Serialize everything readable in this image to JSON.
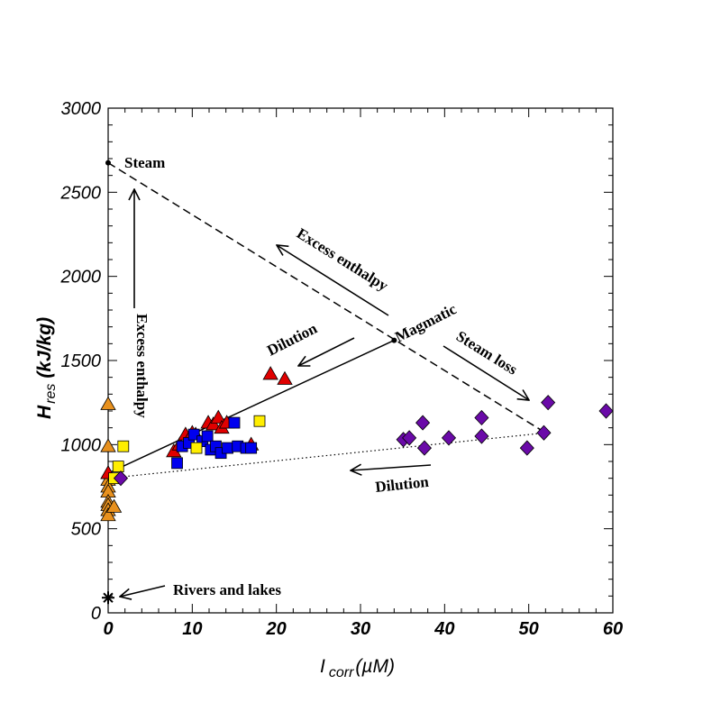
{
  "chart_data": {
    "type": "scatter",
    "xlim": [
      0,
      60
    ],
    "ylim": [
      0,
      3000
    ],
    "x_ticks": [
      "0",
      "10",
      "20",
      "30",
      "40",
      "50",
      "60"
    ],
    "y_ticks": [
      "0",
      "500",
      "1000",
      "1500",
      "2000",
      "2500",
      "3000"
    ],
    "xlabel": {
      "main": "I",
      "sub": "corr",
      "unit": "(µM)"
    },
    "ylabel": {
      "main": "H",
      "sub": "res",
      "unit": "(kJ/kg)"
    },
    "grid": false,
    "series": [
      {
        "marker": "triangle",
        "color": "#e8911e",
        "points": [
          [
            0,
            1240
          ],
          [
            0,
            990
          ],
          [
            0,
            830
          ],
          [
            0,
            790
          ],
          [
            0,
            750
          ],
          [
            0,
            720
          ],
          [
            0,
            660
          ],
          [
            0,
            640
          ],
          [
            0,
            610
          ],
          [
            0,
            580
          ],
          [
            0.7,
            630
          ]
        ]
      },
      {
        "marker": "triangle",
        "color": "#e00000",
        "points": [
          [
            0,
            830
          ],
          [
            7.8,
            960
          ],
          [
            8.5,
            1000
          ],
          [
            9.2,
            1060
          ],
          [
            10,
            1070
          ],
          [
            10.4,
            1060
          ],
          [
            11.9,
            1130
          ],
          [
            12.5,
            1120
          ],
          [
            13.1,
            1160
          ],
          [
            13.5,
            1100
          ],
          [
            14.1,
            1130
          ],
          [
            19.3,
            1420
          ],
          [
            21,
            1390
          ],
          [
            17,
            1000
          ]
        ]
      },
      {
        "marker": "square",
        "color": "#0000ee",
        "points": [
          [
            8.2,
            890
          ],
          [
            8.8,
            990
          ],
          [
            9.6,
            1010
          ],
          [
            10.2,
            1060
          ],
          [
            11.2,
            1020
          ],
          [
            11.8,
            1050
          ],
          [
            12.2,
            970
          ],
          [
            12.8,
            990
          ],
          [
            13.4,
            950
          ],
          [
            14.2,
            980
          ],
          [
            15,
            1130
          ],
          [
            15.4,
            990
          ],
          [
            16.4,
            980
          ],
          [
            17,
            980
          ]
        ]
      },
      {
        "marker": "square",
        "color": "#ffee00",
        "points": [
          [
            0.7,
            800
          ],
          [
            1.2,
            870
          ],
          [
            1.8,
            990
          ],
          [
            10.5,
            980
          ],
          [
            18,
            1140
          ]
        ]
      },
      {
        "marker": "diamond",
        "color": "#6a0aa8",
        "points": [
          [
            1.5,
            800
          ],
          [
            35.1,
            1030
          ],
          [
            35.8,
            1040
          ],
          [
            37.4,
            1130
          ],
          [
            37.6,
            980
          ],
          [
            40.5,
            1040
          ],
          [
            44.4,
            1160
          ],
          [
            44.4,
            1050
          ],
          [
            49.8,
            980
          ],
          [
            51.8,
            1070
          ],
          [
            52.3,
            1250
          ],
          [
            59.2,
            1200
          ]
        ]
      },
      {
        "marker": "asterisk",
        "color": "#000000",
        "points": [
          [
            0,
            90
          ]
        ]
      }
    ],
    "reference_points": [
      {
        "name": "steam",
        "x": 0,
        "y": 2675
      },
      {
        "name": "magmatic",
        "x": 34,
        "y": 1620
      }
    ],
    "lines": [
      {
        "style": "solid",
        "from": [
          0,
          830
        ],
        "to": [
          34,
          1620
        ]
      },
      {
        "style": "dashed",
        "from": [
          0,
          2675
        ],
        "to": [
          52,
          1070
        ]
      },
      {
        "style": "dotted",
        "from": [
          0,
          800
        ],
        "to": [
          52,
          1070
        ]
      }
    ],
    "annotations": {
      "steam": "Steam",
      "magmatic": "Magmatic",
      "excess_enthalpy_diagonal": "Excess enthalpy",
      "excess_enthalpy_vertical": "Excess enthalpy",
      "dilution_upper": "Dilution",
      "dilution_lower": "Dilution",
      "steam_loss": "Steam loss",
      "rivers_lakes": "Rivers and lakes"
    }
  }
}
